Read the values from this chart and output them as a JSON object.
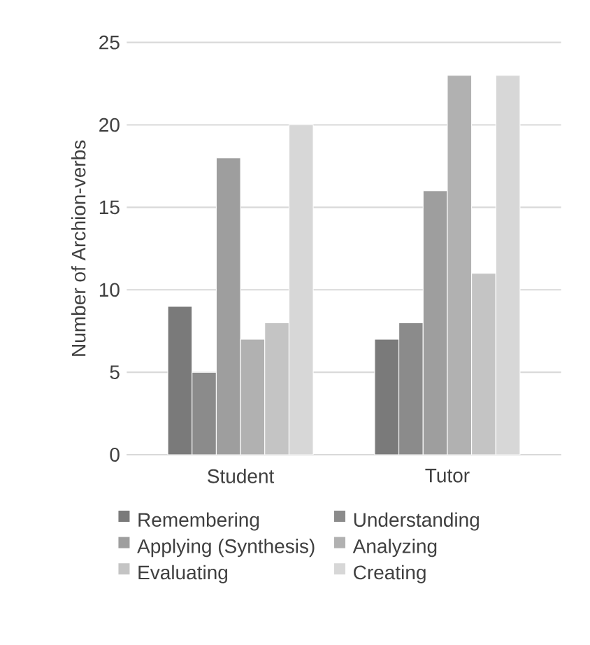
{
  "chart_data": {
    "type": "bar",
    "ylabel": "Number of Archion-verbs",
    "categories": [
      "Student",
      "Tutor"
    ],
    "series": [
      {
        "name": "Remembering",
        "color": "#7a7a7a",
        "values": [
          9,
          7
        ]
      },
      {
        "name": "Understanding",
        "color": "#8b8b8b",
        "values": [
          5,
          8
        ]
      },
      {
        "name": "Applying (Synthesis)",
        "color": "#9e9e9e",
        "values": [
          18,
          16
        ]
      },
      {
        "name": "Analyzing",
        "color": "#b1b1b1",
        "values": [
          7,
          23
        ]
      },
      {
        "name": "Evaluating",
        "color": "#c4c4c4",
        "values": [
          8,
          11
        ]
      },
      {
        "name": "Creating",
        "color": "#d7d7d7",
        "values": [
          20,
          23
        ]
      }
    ],
    "ylim": [
      0,
      25
    ],
    "yticks": [
      0,
      5,
      10,
      15,
      20,
      25
    ],
    "grid": "y",
    "legend": "bottom"
  }
}
